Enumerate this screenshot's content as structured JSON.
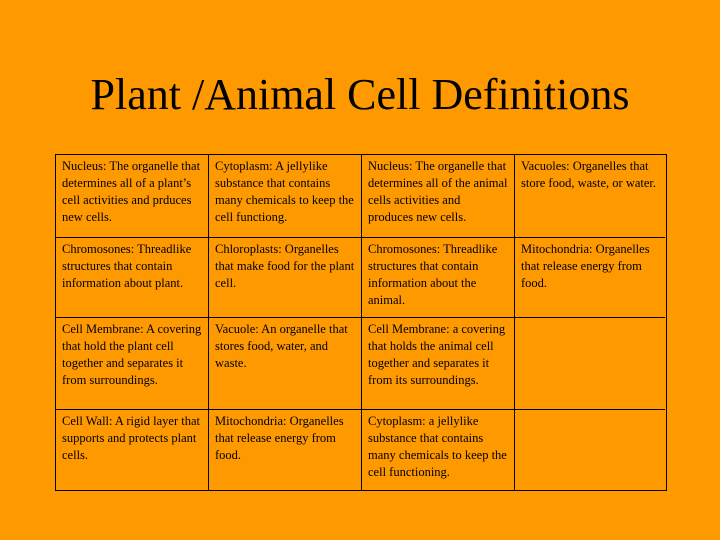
{
  "slide": {
    "title": "Plant /Animal Cell Definitions"
  },
  "table": {
    "rows": [
      [
        "Nucleus:  The organelle that determines all of a plant’s cell activities and prduces new cells.",
        "Cytoplasm:  A jellylike substance that contains many chemicals to keep the cell  functiong.",
        "Nucleus:  The organelle that determines all of the animal cells activities and produces new cells.",
        "Vacuoles:  Organelles that store food, waste, or water."
      ],
      [
        "Chromosones: Threadlike structures that contain  information about plant.",
        "Chloroplasts:  Organelles that  make food for the plant cell.",
        "Chromosones: Threadlike structures that contain information about  the animal.",
        "Mitochondria: Organelles that release energy from food."
      ],
      [
        "Cell Membrane:  A covering  that hold the plant cell  together and separates it from surroundings.",
        "Vacuole:  An organelle that stores food, water, and waste.",
        "Cell Membrane:  a covering  that holds the animal cell  together and separates it from its surroundings.",
        ""
      ],
      [
        "Cell Wall:  A rigid layer that supports and protects plant cells.",
        "Mitochondria: Organelles that  release energy from food.",
        "Cytoplasm:  a jellylike substance that contains many chemicals to keep the cell  functioning.",
        ""
      ]
    ]
  }
}
